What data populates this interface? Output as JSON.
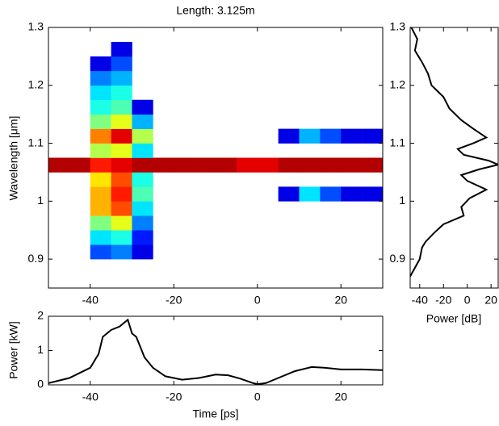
{
  "chart_data": [
    {
      "type": "heatmap",
      "title": "Length: 3.125m",
      "ylabel": "Wavelength [μm]",
      "colormap": "jet",
      "zlim": [
        0,
        1
      ],
      "x_bins": [
        -50,
        -45,
        -40,
        -35,
        -30,
        -25,
        -20,
        -15,
        -10,
        -5,
        0,
        5,
        10,
        15,
        20,
        25,
        30
      ],
      "y_bins": [
        0.85,
        0.875,
        0.9,
        0.925,
        0.95,
        0.975,
        1.0,
        1.025,
        1.05,
        1.075,
        1.1,
        1.125,
        1.15,
        1.175,
        1.2,
        1.225,
        1.25,
        1.275,
        1.3
      ],
      "z": [
        [
          null,
          null,
          null,
          null,
          null,
          null,
          null,
          null,
          null,
          null,
          null,
          null,
          null,
          null,
          null,
          null
        ],
        [
          null,
          null,
          null,
          null,
          null,
          null,
          null,
          null,
          null,
          null,
          null,
          null,
          null,
          null,
          null,
          null
        ],
        [
          null,
          null,
          0.2,
          0.25,
          0.1,
          null,
          null,
          null,
          null,
          null,
          null,
          null,
          null,
          null,
          null,
          null
        ],
        [
          null,
          null,
          0.35,
          0.4,
          0.15,
          null,
          null,
          null,
          null,
          null,
          null,
          null,
          null,
          null,
          null,
          null
        ],
        [
          null,
          null,
          0.5,
          0.6,
          0.25,
          null,
          null,
          null,
          null,
          null,
          null,
          null,
          null,
          null,
          null,
          null
        ],
        [
          null,
          null,
          0.7,
          0.8,
          0.35,
          null,
          null,
          null,
          null,
          null,
          null,
          null,
          null,
          null,
          null,
          null
        ],
        [
          null,
          null,
          0.7,
          0.85,
          0.45,
          null,
          null,
          null,
          null,
          null,
          null,
          0.1,
          0.35,
          0.2,
          0.1,
          0.1
        ],
        [
          null,
          null,
          0.65,
          0.8,
          0.4,
          null,
          null,
          null,
          null,
          null,
          null,
          null,
          null,
          null,
          null,
          null
        ],
        [
          0.95,
          0.95,
          0.85,
          0.9,
          0.95,
          0.95,
          0.95,
          0.95,
          0.95,
          0.9,
          0.9,
          0.95,
          0.95,
          0.95,
          0.95,
          0.95
        ],
        [
          null,
          null,
          0.55,
          0.6,
          0.35,
          null,
          null,
          null,
          null,
          null,
          null,
          null,
          null,
          null,
          null,
          null
        ],
        [
          null,
          null,
          0.75,
          0.9,
          0.55,
          null,
          null,
          null,
          null,
          null,
          null,
          0.1,
          0.3,
          0.2,
          0.1,
          0.1
        ],
        [
          null,
          null,
          0.5,
          0.6,
          0.3,
          null,
          null,
          null,
          null,
          null,
          null,
          null,
          null,
          null,
          null,
          null
        ],
        [
          null,
          null,
          0.4,
          0.45,
          0.1,
          null,
          null,
          null,
          null,
          null,
          null,
          null,
          null,
          null,
          null,
          null
        ],
        [
          null,
          null,
          0.35,
          0.4,
          null,
          null,
          null,
          null,
          null,
          null,
          null,
          null,
          null,
          null,
          null,
          null
        ],
        [
          null,
          null,
          0.25,
          0.3,
          null,
          null,
          null,
          null,
          null,
          null,
          null,
          null,
          null,
          null,
          null,
          null
        ],
        [
          null,
          null,
          0.1,
          0.2,
          null,
          null,
          null,
          null,
          null,
          null,
          null,
          null,
          null,
          null,
          null,
          null
        ],
        [
          null,
          null,
          null,
          0.1,
          null,
          null,
          null,
          null,
          null,
          null,
          null,
          null,
          null,
          null,
          null,
          null
        ],
        [
          null,
          null,
          null,
          null,
          null,
          null,
          null,
          null,
          null,
          null,
          null,
          null,
          null,
          null,
          null,
          null
        ]
      ],
      "xlim": [
        -50,
        30
      ],
      "ylim": [
        0.85,
        1.3
      ],
      "xticks": [
        -40,
        -20,
        0,
        20
      ],
      "yticks": [
        0.9,
        1,
        1.1,
        1.2,
        1.3
      ]
    },
    {
      "type": "line",
      "orientation": "vertical",
      "xlabel": "Power [dB]",
      "color": "#000000",
      "y": [
        1.3,
        1.28,
        1.26,
        1.24,
        1.22,
        1.2,
        1.18,
        1.16,
        1.14,
        1.125,
        1.11,
        1.1,
        1.09,
        1.08,
        1.07,
        1.063,
        1.055,
        1.045,
        1.035,
        1.02,
        1.005,
        0.99,
        0.975,
        0.96,
        0.945,
        0.93,
        0.92,
        0.9,
        0.885,
        0.87
      ],
      "values": [
        -47,
        -42,
        -44,
        -38,
        -33,
        -30,
        -20,
        -15,
        -5,
        5,
        16,
        5,
        -8,
        -3,
        18,
        26,
        10,
        -5,
        0,
        16,
        2,
        -5,
        -3,
        -20,
        -28,
        -35,
        -38,
        -40,
        -44,
        -48
      ],
      "xlim": [
        -48,
        26
      ],
      "ylim": [
        0.85,
        1.3
      ],
      "xticks": [
        -40,
        -20,
        0,
        20
      ],
      "yticks": [
        0.9,
        1,
        1.1,
        1.2,
        1.3
      ]
    },
    {
      "type": "line",
      "xlabel": "Time [ps]",
      "ylabel": "Power [kW]",
      "color": "#000000",
      "x": [
        -50,
        -45,
        -40,
        -38,
        -37,
        -35,
        -33,
        -31,
        -30,
        -29,
        -28,
        -27,
        -25,
        -22,
        -18,
        -14,
        -10,
        -7,
        -4,
        -1,
        0,
        2,
        5,
        9,
        13,
        16,
        20,
        25,
        30
      ],
      "values": [
        0.05,
        0.2,
        0.5,
        0.9,
        1.4,
        1.6,
        1.7,
        1.9,
        1.5,
        1.4,
        1.1,
        0.8,
        0.5,
        0.25,
        0.15,
        0.2,
        0.3,
        0.28,
        0.18,
        0.05,
        0.02,
        0.05,
        0.2,
        0.4,
        0.52,
        0.5,
        0.45,
        0.45,
        0.43
      ],
      "xlim": [
        -50,
        30
      ],
      "ylim": [
        0,
        2
      ],
      "xticks": [
        -40,
        -20,
        0,
        20
      ],
      "yticks": [
        0,
        1,
        2
      ]
    }
  ]
}
